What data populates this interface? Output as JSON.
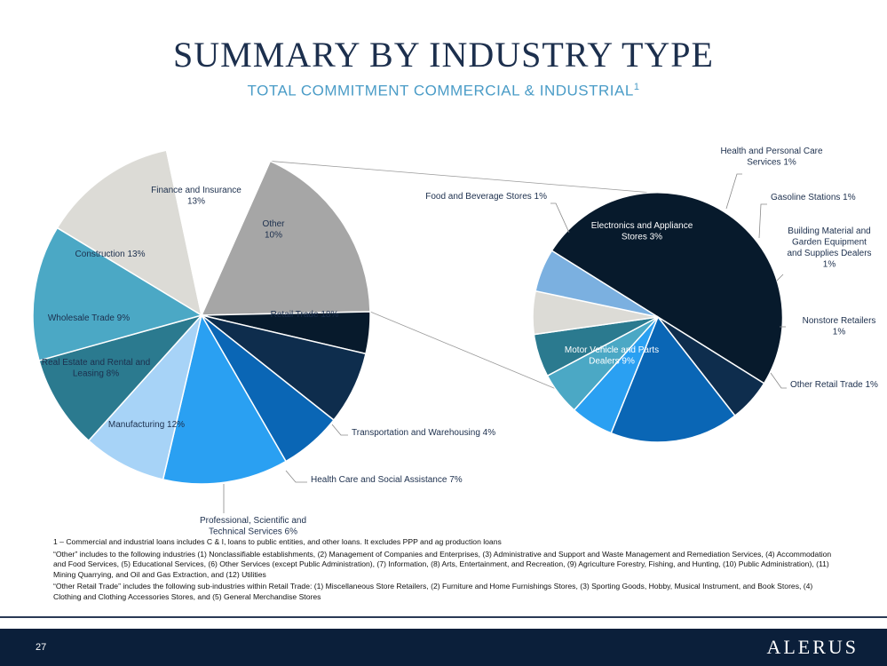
{
  "slide": {
    "title": "SUMMARY BY INDUSTRY TYPE",
    "subtitle": "TOTAL COMMITMENT COMMERCIAL & INDUSTRIAL",
    "subtitle_sup": "1",
    "page_number": "27",
    "logo": "ALERUS"
  },
  "footnotes": [
    "1 – Commercial and industrial loans includes C & I, loans to public entities, and other loans. It excludes PPP and ag production loans",
    "“Other” includes to the following industries (1) Nonclassifiable establishments, (2) Management of Companies and Enterprises, (3) Administrative and Support and Waste Management and Remediation Services, (4) Accommodation and Food Services, (5) Educational Services, (6) Other Services (except Public Administration), (7) Information, (8) Arts, Entertainment, and Recreation, (9) Agriculture Forestry, Fishing, and Hunting, (10) Public Administration), (11) Mining Quarrying, and Oil and Gas Extraction, and (12) Utilities",
    "“Other Retail Trade” includes the following sub-industries within Retail Trade: (1) Miscellaneous Store Retailers, (2) Furniture and Home Furnishings Stores, (3) Sporting Goods, Hobby, Musical Instrument, and Book Stores, (4) Clothing and Clothing Accessories Stores, and (5) General Merchandise Stores"
  ],
  "chart_data": [
    {
      "type": "pie",
      "unit": "%",
      "slices": [
        {
          "label": "Retail Trade",
          "value": 18,
          "display": "Retail Trade 18%",
          "color": "#a6a6a6",
          "text_color": "#1c2f4d"
        },
        {
          "label": "Transportation and Warehousing",
          "value": 4,
          "display": "Transportation and Warehousing 4%",
          "color": "#071a2c"
        },
        {
          "label": "Health Care and Social Assistance",
          "value": 7,
          "display": "Health Care and Social Assistance 7%",
          "color": "#0e2d4d"
        },
        {
          "label": "Professional, Scientific and Technical Services",
          "value": 6,
          "display": "Professional, Scientific and Technical Services 6%",
          "color": "#0a66b5"
        },
        {
          "label": "Manufacturing",
          "value": 12,
          "display": "Manufacturing 12%",
          "color": "#2aa0f2",
          "text_color": "#1c2f4d"
        },
        {
          "label": "Real Estate and Rental and Leasing",
          "value": 8,
          "display": "Real Estate and Rental and Leasing 8%",
          "color": "#a7d3f7",
          "text_color": "#1c2f4d"
        },
        {
          "label": "Wholesale Trade",
          "value": 9,
          "display": "Wholesale Trade 9%",
          "color": "#2b7a8f",
          "text_color": "#1c2f4d"
        },
        {
          "label": "Construction",
          "value": 13,
          "display": "Construction 13%",
          "color": "#4ba8c5",
          "text_color": "#1c2f4d"
        },
        {
          "label": "Finance and Insurance",
          "value": 13,
          "display": "Finance and Insurance 13%",
          "color": "#dcdbd6",
          "text_color": "#1c2f4d"
        },
        {
          "label": "Other",
          "value": 10,
          "display": "Other 10%",
          "color": "#ffffff",
          "text_color": "#1c2f4d"
        }
      ]
    },
    {
      "type": "pie",
      "unit": "%",
      "breakdown_of": "Retail Trade",
      "slices": [
        {
          "label": "Motor Vehicle and Parts Dealers",
          "value": 9,
          "display": "Motor Vehicle and Parts Dealers 9%",
          "color": "#071a2c"
        },
        {
          "label": "Food and Beverage Stores",
          "value": 1,
          "display": "Food and Beverage Stores 1%",
          "color": "#0e2d4d"
        },
        {
          "label": "Electronics and Appliance Stores",
          "value": 3,
          "display": "Electronics and Appliance Stores 3%",
          "color": "#0a66b5"
        },
        {
          "label": "Health and Personal Care Services",
          "value": 1,
          "display": "Health and Personal Care Services 1%",
          "color": "#2aa0f2"
        },
        {
          "label": "Gasoline Stations",
          "value": 1,
          "display": "Gasoline Stations 1%",
          "color": "#4ba8c5"
        },
        {
          "label": "Building Material and Garden Equipment and Supplies Dealers",
          "value": 1,
          "display": "Building Material and Garden Equipment and Supplies Dealers 1%",
          "color": "#2b7a8f"
        },
        {
          "label": "Nonstore Retailers",
          "value": 1,
          "display": "Nonstore Retailers 1%",
          "color": "#dcdbd6"
        },
        {
          "label": "Other Retail Trade",
          "value": 1,
          "display": "Other Retail Trade 1%",
          "color": "#7bb0e0"
        }
      ]
    }
  ]
}
